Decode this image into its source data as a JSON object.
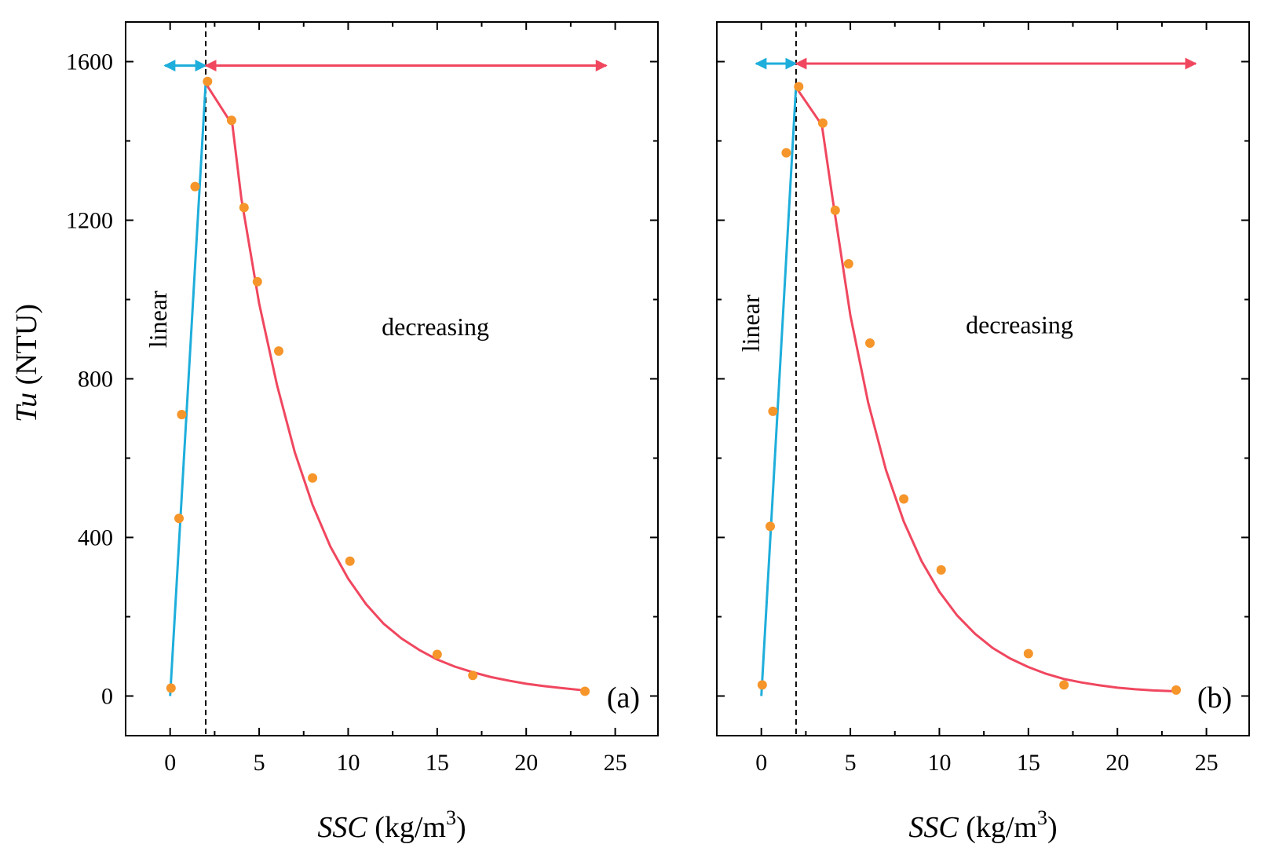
{
  "colors": {
    "linear": "#1EAEDB",
    "decreasing": "#F0475F",
    "points": "#F5952A",
    "axis": "#000000"
  },
  "chart_data": [
    {
      "type": "scatter",
      "panel_label": "(a)",
      "xlabel_var": "SSC",
      "xlabel_unit_pre": " (kg/m",
      "xlabel_unit_sup": "3",
      "xlabel_unit_post": ")",
      "ylabel_var": "Tu",
      "ylabel_unit": " (NTU)",
      "xlim": [
        -2.5,
        27.4
      ],
      "ylim": [
        -100,
        1700
      ],
      "xticks": [
        0,
        5,
        10,
        15,
        20,
        25
      ],
      "yticks": [
        0,
        400,
        800,
        1200,
        1600
      ],
      "xtick_labels": [
        "0",
        "5",
        "10",
        "15",
        "20",
        "25"
      ],
      "ytick_labels": [
        "0",
        "400",
        "800",
        "1200",
        "1600"
      ],
      "boundary_x": 2.0,
      "arrow_y": 1590,
      "arrow_linear_range": [
        -0.3,
        2.0
      ],
      "arrow_decreasing_range": [
        2.0,
        24.5
      ],
      "region_labels": {
        "linear": "linear",
        "decreasing": "decreasing"
      },
      "region_label_pos": {
        "linear": [
          -0.7,
          950
        ],
        "decreasing": [
          14.9,
          930
        ]
      },
      "points": {
        "x": [
          0.05,
          0.5,
          0.65,
          1.4,
          2.1,
          3.45,
          4.15,
          4.9,
          6.1,
          8.0,
          10.1,
          15.0,
          17.0,
          23.3
        ],
        "y": [
          20,
          448,
          710,
          1285,
          1550,
          1452,
          1232,
          1045,
          870,
          550,
          340,
          105,
          52,
          12
        ]
      },
      "linear_fit": {
        "x": [
          0.0,
          2.0
        ],
        "y": [
          0,
          1548
        ]
      },
      "decay_fit": {
        "x": [
          2.0,
          3.5,
          4.0,
          5.0,
          6.0,
          7.0,
          8.0,
          9.0,
          10.0,
          11.0,
          12.0,
          13.0,
          14.0,
          15.0,
          16.0,
          17.0,
          18.0,
          19.0,
          20.0,
          21.0,
          22.0,
          23.3
        ],
        "y": [
          1545,
          1440,
          1255,
          990,
          785,
          615,
          482,
          377,
          296,
          232,
          182,
          145,
          116,
          92,
          74,
          60,
          48,
          39,
          31,
          25,
          20,
          14
        ]
      }
    },
    {
      "type": "scatter",
      "panel_label": "(b)",
      "xlabel_var": "SSC",
      "xlabel_unit_pre": " (kg/m",
      "xlabel_unit_sup": "3",
      "xlabel_unit_post": ")",
      "ylabel_var": "",
      "ylabel_unit": "",
      "xlim": [
        -2.5,
        27.4
      ],
      "ylim": [
        -100,
        1700
      ],
      "xticks": [
        0,
        5,
        10,
        15,
        20,
        25
      ],
      "yticks": [
        0,
        400,
        800,
        1200,
        1600
      ],
      "xtick_labels": [
        "0",
        "5",
        "10",
        "15",
        "20",
        "25"
      ],
      "ytick_labels": [],
      "boundary_x": 1.95,
      "arrow_y": 1595,
      "arrow_linear_range": [
        -0.3,
        1.95
      ],
      "arrow_decreasing_range": [
        1.95,
        24.4
      ],
      "region_labels": {
        "linear": "linear",
        "decreasing": "decreasing"
      },
      "region_label_pos": {
        "linear": [
          -0.6,
          940
        ],
        "decreasing": [
          14.5,
          935
        ]
      },
      "points": {
        "x": [
          0.05,
          0.5,
          0.65,
          1.4,
          2.1,
          3.45,
          4.15,
          4.9,
          6.1,
          8.0,
          10.1,
          15.0,
          17.0,
          23.3
        ],
        "y": [
          28,
          428,
          718,
          1370,
          1537,
          1445,
          1225,
          1090,
          890,
          497,
          318,
          107,
          28,
          15
        ]
      },
      "linear_fit": {
        "x": [
          0.0,
          1.95
        ],
        "y": [
          0,
          1540
        ]
      },
      "decay_fit": {
        "x": [
          1.95,
          3.4,
          4.0,
          5.0,
          6.0,
          7.0,
          8.0,
          9.0,
          10.0,
          11.0,
          12.0,
          13.0,
          14.0,
          15.0,
          16.0,
          17.0,
          18.0,
          19.0,
          20.0,
          21.0,
          22.0,
          23.3
        ],
        "y": [
          1535,
          1440,
          1255,
          960,
          740,
          570,
          440,
          340,
          263,
          203,
          157,
          121,
          94,
          73,
          56,
          43,
          34,
          27,
          21,
          17,
          14,
          12
        ]
      }
    }
  ]
}
